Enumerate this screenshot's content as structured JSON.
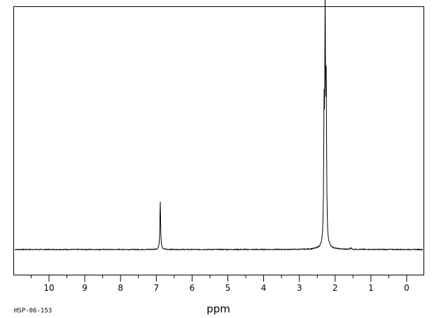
{
  "sample_id": "HSP-06-153",
  "chart_data": {
    "type": "line",
    "title": "",
    "xlabel": "ppm",
    "ylabel": "",
    "x_reversed": true,
    "xlim": [
      11.0,
      -0.5
    ],
    "ylim": [
      -0.12,
      1.12
    ],
    "major_ticks": [
      10,
      9,
      8,
      7,
      6,
      5,
      4,
      3,
      2,
      1,
      0
    ],
    "tick_labels": [
      "10",
      "9",
      "8",
      "7",
      "6",
      "5",
      "4",
      "3",
      "2",
      "1",
      "0"
    ],
    "minor_ticks": [
      10.5,
      9.5,
      8.5,
      7.5,
      6.5,
      5.5,
      4.5,
      3.5,
      2.5,
      1.5,
      0.5
    ],
    "grid": false,
    "legend": "none",
    "line_color": "#000000",
    "peaks": [
      {
        "shift": 6.89,
        "intensity": 0.22
      },
      {
        "shift": 2.31,
        "intensity": 0.55
      },
      {
        "shift": 2.28,
        "intensity": 1.0
      },
      {
        "shift": 2.25,
        "intensity": 0.66
      },
      {
        "shift": 1.56,
        "intensity": 0.01
      }
    ]
  }
}
